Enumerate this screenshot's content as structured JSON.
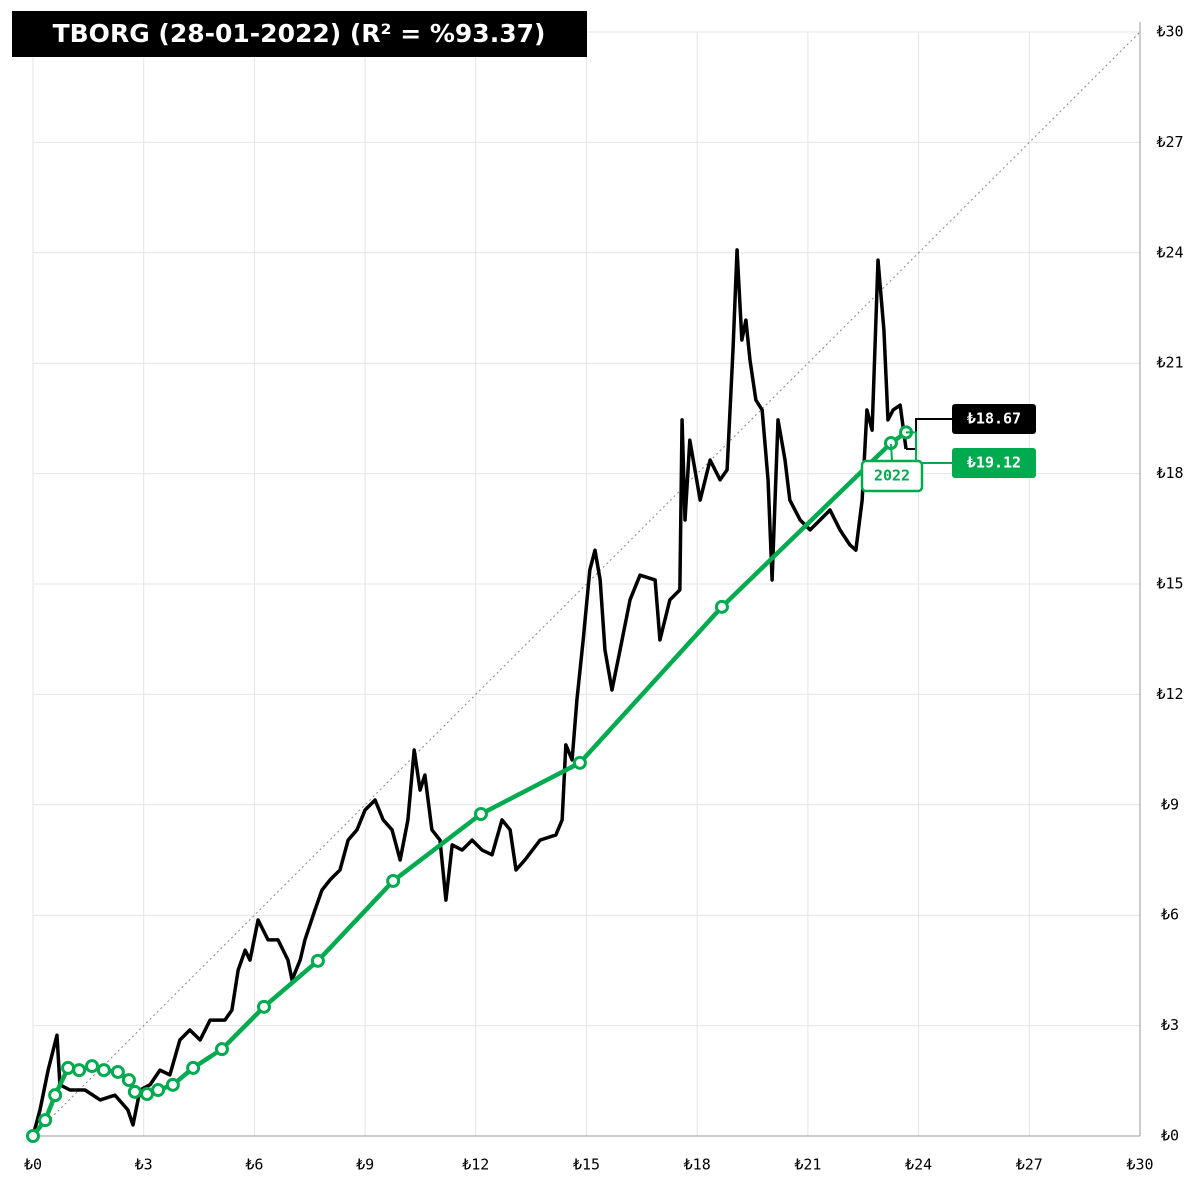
{
  "chart_data": {
    "type": "line",
    "title": "TBORG (28-01-2022) (R² = %93.37)",
    "xlim": [
      0,
      30
    ],
    "ylim": [
      0,
      30
    ],
    "xticks": [
      {
        "value": 0,
        "label": "₺0"
      },
      {
        "value": 3,
        "label": "₺3"
      },
      {
        "value": 6,
        "label": "₺6"
      },
      {
        "value": 9,
        "label": "₺9"
      },
      {
        "value": 12,
        "label": "₺12"
      },
      {
        "value": 15,
        "label": "₺15"
      },
      {
        "value": 18,
        "label": "₺18"
      },
      {
        "value": 21,
        "label": "₺21"
      },
      {
        "value": 24,
        "label": "₺24"
      },
      {
        "value": 27,
        "label": "₺27"
      },
      {
        "value": 30,
        "label": "₺30"
      }
    ],
    "yticks": [
      {
        "value": 0,
        "label": "₺0"
      },
      {
        "value": 3,
        "label": "₺3"
      },
      {
        "value": 6,
        "label": "₺6"
      },
      {
        "value": 9,
        "label": "₺9"
      },
      {
        "value": 12,
        "label": "₺12"
      },
      {
        "value": 15,
        "label": "₺15"
      },
      {
        "value": 18,
        "label": "₺18"
      },
      {
        "value": 21,
        "label": "₺21"
      },
      {
        "value": 24,
        "label": "₺24"
      },
      {
        "value": 27,
        "label": "₺27"
      },
      {
        "value": 30,
        "label": "₺30"
      }
    ],
    "grid": true,
    "diagonal": true,
    "series": [
      {
        "color": "#000000",
        "markers": false,
        "end_label": "₺18.67",
        "x": [
          0,
          0.19,
          0.41,
          0.65,
          0.73,
          1.0,
          1.41,
          1.82,
          2.22,
          2.57,
          2.71,
          2.9,
          3.17,
          3.44,
          3.71,
          3.98,
          4.25,
          4.53,
          4.8,
          5.2,
          5.39,
          5.56,
          5.75,
          5.88,
          6.1,
          6.37,
          6.64,
          6.91,
          7.02,
          7.24,
          7.37,
          7.64,
          7.83,
          8.05,
          8.32,
          8.54,
          8.78,
          9.0,
          9.27,
          9.49,
          9.73,
          9.95,
          10.16,
          10.33,
          10.49,
          10.62,
          10.81,
          11.03,
          11.19,
          11.36,
          11.63,
          11.9,
          12.17,
          12.44,
          12.71,
          12.93,
          13.09,
          13.33,
          13.74,
          14.17,
          14.34,
          14.44,
          14.61,
          14.74,
          14.91,
          15.09,
          15.23,
          15.37,
          15.5,
          15.69,
          15.91,
          16.18,
          16.45,
          16.86,
          16.99,
          17.26,
          17.53,
          17.59,
          17.67,
          17.8,
          18.08,
          18.35,
          18.62,
          18.81,
          18.97,
          19.08,
          19.21,
          19.32,
          19.43,
          19.59,
          19.76,
          19.92,
          20.03,
          20.19,
          20.38,
          20.51,
          20.79,
          21.06,
          21.33,
          21.6,
          21.87,
          22.14,
          22.3,
          22.47,
          22.6,
          22.74,
          22.9,
          23.06,
          23.17,
          23.31,
          23.5,
          23.66
        ],
        "values": [
          0,
          0.71,
          1.79,
          2.74,
          1.39,
          1.25,
          1.25,
          0.98,
          1.11,
          0.71,
          0.3,
          1.25,
          1.39,
          1.79,
          1.66,
          2.61,
          2.88,
          2.61,
          3.15,
          3.15,
          3.42,
          4.51,
          5.05,
          4.78,
          5.87,
          5.33,
          5.33,
          4.78,
          4.24,
          4.78,
          5.33,
          6.14,
          6.68,
          6.96,
          7.23,
          8.04,
          8.32,
          8.86,
          9.13,
          8.59,
          8.32,
          7.5,
          8.59,
          10.49,
          9.4,
          9.81,
          8.32,
          8.04,
          6.41,
          7.91,
          7.77,
          8.04,
          7.77,
          7.64,
          8.59,
          8.32,
          7.23,
          7.5,
          8.04,
          8.18,
          8.59,
          10.63,
          10.22,
          11.85,
          13.48,
          15.38,
          15.92,
          15.11,
          13.21,
          12.12,
          13.21,
          14.57,
          15.24,
          15.11,
          13.48,
          14.57,
          14.84,
          19.46,
          16.74,
          18.91,
          17.28,
          18.37,
          17.83,
          18.1,
          21.36,
          24.08,
          21.63,
          22.17,
          21.09,
          20.0,
          19.73,
          17.83,
          15.11,
          19.46,
          18.37,
          17.28,
          16.74,
          16.47,
          16.74,
          17.01,
          16.47,
          16.06,
          15.92,
          17.28,
          19.73,
          19.18,
          23.8,
          21.9,
          19.46,
          19.73,
          19.86,
          18.67
        ]
      },
      {
        "color": "#00aa4f",
        "markers": true,
        "end_label": "₺19.12",
        "annotation": "2022",
        "x": [
          0,
          0.33,
          0.6,
          0.95,
          1.25,
          1.6,
          1.92,
          2.3,
          2.6,
          2.76,
          3.09,
          3.39,
          3.79,
          4.34,
          5.12,
          6.26,
          7.72,
          9.76,
          12.14,
          14.82,
          18.67,
          23.25,
          23.66
        ],
        "values": [
          0,
          0.43,
          1.11,
          1.85,
          1.79,
          1.9,
          1.79,
          1.74,
          1.52,
          1.2,
          1.14,
          1.25,
          1.39,
          1.85,
          2.36,
          3.51,
          4.76,
          6.93,
          8.75,
          10.14,
          14.38,
          18.83,
          19.12
        ]
      }
    ]
  }
}
